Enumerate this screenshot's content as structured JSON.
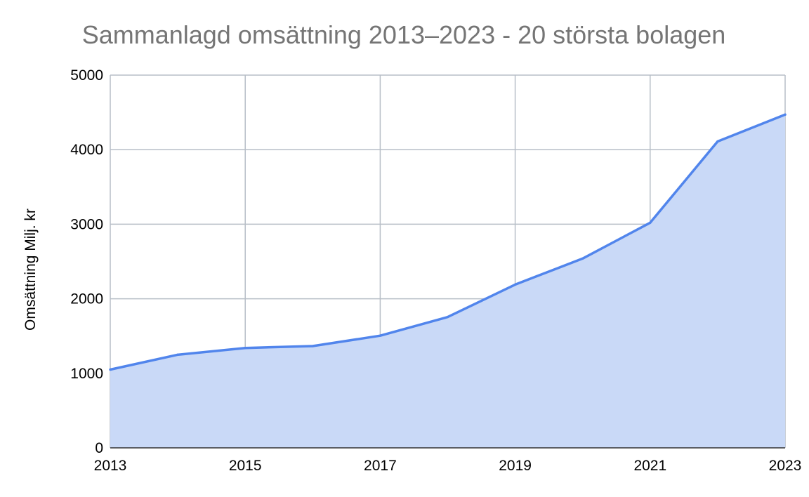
{
  "colors": {
    "line": "#5185EC",
    "area": "#C9D9F7",
    "grid": "#B7BEC7",
    "baseline": "#333333"
  },
  "chart_data": {
    "type": "area",
    "title": "Sammanlagd omsättning 2013–2023 - 20 största bolagen",
    "xlabel": "",
    "ylabel": "Omsättning Milj. kr",
    "x": [
      2013,
      2014,
      2015,
      2016,
      2017,
      2018,
      2019,
      2020,
      2021,
      2022,
      2023
    ],
    "series": [
      {
        "values": [
          1050,
          1250,
          1340,
          1365,
          1505,
          1755,
          2190,
          2540,
          3020,
          4110,
          4470
        ]
      }
    ],
    "xlim": [
      2013,
      2023
    ],
    "ylim": [
      0,
      5000
    ],
    "x_ticks": [
      "2013",
      "2015",
      "2017",
      "2019",
      "2021",
      "2023"
    ],
    "y_ticks": [
      "0",
      "1000",
      "2000",
      "3000",
      "4000",
      "5000"
    ],
    "grid": true,
    "legend": "none"
  }
}
